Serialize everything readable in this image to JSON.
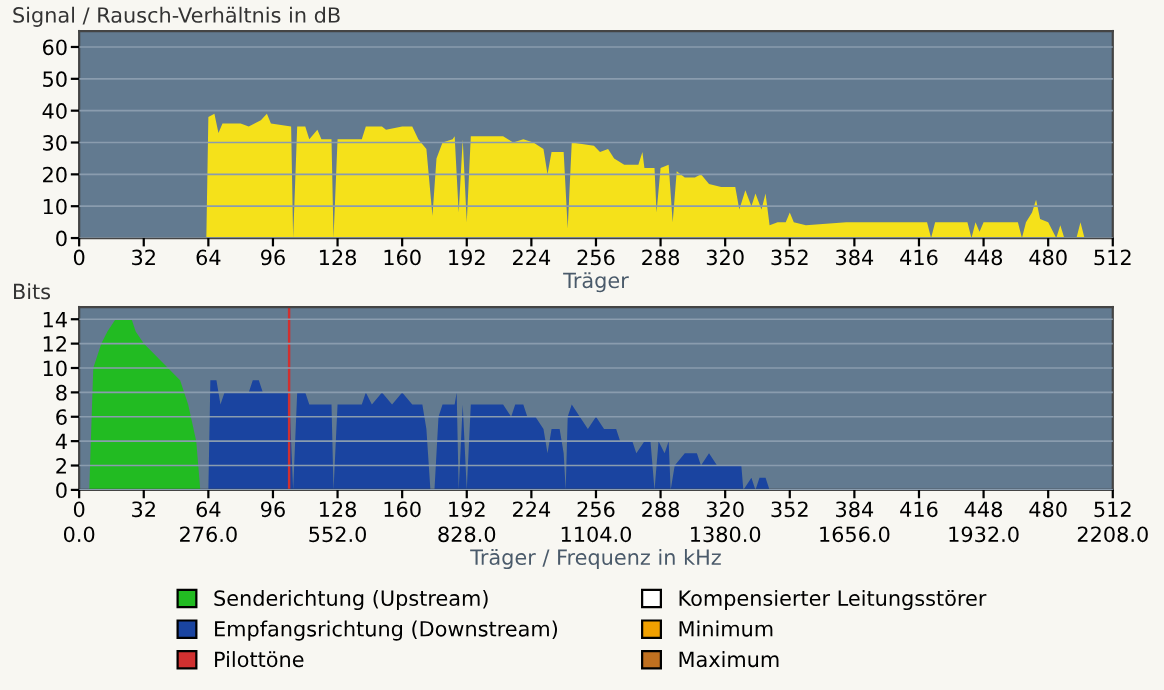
{
  "chart_data": [
    {
      "type": "area",
      "ylabel": "Signal / Rausch-Verhältnis in dB",
      "xlabel": "Träger",
      "xlim": [
        0,
        512
      ],
      "xticks": [
        0,
        32,
        64,
        96,
        128,
        160,
        192,
        224,
        256,
        288,
        320,
        352,
        384,
        416,
        448,
        480,
        512
      ],
      "ylim": [
        0,
        65
      ],
      "yticks": [
        0,
        10,
        20,
        30,
        40,
        50,
        60
      ],
      "grid": "y",
      "series": [
        {
          "color": "#f5e11a",
          "x": [
            0,
            63,
            64,
            67,
            69,
            71,
            80,
            84,
            90,
            93,
            95,
            105,
            106,
            108,
            112,
            114,
            118,
            120,
            125,
            126,
            128,
            140,
            142,
            150,
            152,
            160,
            165,
            168,
            172,
            175,
            177,
            180,
            185,
            186,
            188,
            190,
            192,
            194,
            210,
            215,
            220,
            225,
            230,
            232,
            234,
            240,
            242,
            244,
            255,
            258,
            262,
            265,
            270,
            277,
            279,
            280,
            285,
            286,
            288,
            292,
            294,
            296,
            300,
            305,
            308,
            312,
            318,
            325,
            327,
            330,
            333,
            335,
            338,
            340,
            342,
            346,
            350,
            352,
            354,
            360,
            380,
            400,
            420,
            422,
            424,
            440,
            442,
            444,
            446,
            448,
            465,
            467,
            469,
            472,
            474,
            476,
            480,
            484,
            486,
            488,
            494,
            496,
            498,
            512
          ],
          "values": [
            0,
            0,
            38,
            39,
            33,
            36,
            36,
            35,
            37,
            39,
            36,
            35,
            0,
            35,
            35,
            31,
            34,
            31,
            31,
            0,
            31,
            31,
            35,
            35,
            34,
            35,
            35,
            31,
            28,
            7,
            25,
            30,
            31,
            32,
            8,
            31,
            5,
            32,
            32,
            30,
            31,
            30,
            28,
            20,
            27,
            27,
            3,
            30,
            29,
            27,
            28,
            25,
            23,
            23,
            27,
            22,
            22,
            8,
            22,
            23,
            5,
            21,
            19,
            19,
            20,
            17,
            16,
            16,
            9,
            15,
            10,
            14,
            9,
            14,
            4,
            5,
            5,
            8,
            5,
            4,
            5,
            5,
            5,
            0,
            5,
            5,
            0,
            5,
            2,
            5,
            5,
            0,
            5,
            8,
            12,
            6,
            5,
            0,
            4,
            0,
            0,
            5,
            0,
            0
          ]
        }
      ]
    },
    {
      "type": "area",
      "ylabel": "Bits",
      "xlabel": "Träger / Frequenz in kHz",
      "xlim": [
        0,
        512
      ],
      "xticks": [
        0,
        32,
        64,
        96,
        128,
        160,
        192,
        224,
        256,
        288,
        320,
        352,
        384,
        416,
        448,
        480,
        512
      ],
      "x2lim": [
        0,
        2208
      ],
      "x2ticks": [
        {
          "value": 0,
          "label": "0.0"
        },
        {
          "value": 276,
          "label": "276.0"
        },
        {
          "value": 552,
          "label": "552.0"
        },
        {
          "value": 828,
          "label": "828.0"
        },
        {
          "value": 1104,
          "label": "1104.0"
        },
        {
          "value": 1380,
          "label": "1380.0"
        },
        {
          "value": 1656,
          "label": "1656.0"
        },
        {
          "value": 1932,
          "label": "1932.0"
        },
        {
          "value": 2208,
          "label": "2208.0"
        }
      ],
      "ylim": [
        0,
        15
      ],
      "yticks": [
        0,
        2,
        4,
        6,
        8,
        10,
        12,
        14
      ],
      "grid": "y",
      "legend": "bottom",
      "series": [
        {
          "name": "Senderichtung (Upstream)",
          "color": "#22bb22",
          "x": [
            0,
            5,
            6,
            7,
            9,
            11,
            14,
            18,
            26,
            28,
            32,
            38,
            44,
            50,
            54,
            58,
            60,
            63
          ],
          "values": [
            0,
            0,
            5,
            10,
            11,
            12,
            13,
            14,
            14,
            13,
            12,
            11,
            10,
            9,
            7,
            4,
            0,
            0
          ]
        },
        {
          "name": "Empfangsrichtung (Downstream)",
          "color": "#1a44a0",
          "x": [
            64,
            65,
            68,
            70,
            72,
            80,
            84,
            86,
            89,
            91,
            100,
            104,
            106,
            108,
            112,
            114,
            125,
            126,
            128,
            140,
            142,
            145,
            150,
            155,
            160,
            165,
            170,
            172,
            174,
            176,
            178,
            180,
            186,
            187,
            188,
            190,
            192,
            194,
            210,
            214,
            216,
            220,
            222,
            226,
            230,
            232,
            234,
            238,
            240,
            241,
            242,
            244,
            248,
            252,
            256,
            260,
            266,
            268,
            274,
            276,
            280,
            283,
            285,
            287,
            290,
            292,
            293,
            295,
            300,
            306,
            308,
            312,
            316,
            320,
            328,
            329,
            333,
            335,
            337,
            340,
            342,
            512
          ],
          "values": [
            0,
            9,
            9,
            7,
            8,
            8,
            8,
            9,
            9,
            8,
            8,
            8,
            0,
            8,
            8,
            7,
            7,
            0,
            7,
            7,
            8,
            7,
            8,
            7,
            8,
            7,
            7,
            5,
            0,
            0,
            6,
            7,
            7,
            8,
            0,
            7,
            0,
            7,
            7,
            6,
            7,
            7,
            6,
            6,
            5,
            3,
            5,
            5,
            3,
            0,
            6,
            7,
            6,
            5,
            6,
            5,
            5,
            4,
            4,
            3,
            4,
            4,
            0,
            4,
            3,
            4,
            0,
            2,
            3,
            3,
            2,
            3,
            2,
            2,
            2,
            0,
            1,
            0,
            1,
            1,
            0,
            0
          ]
        },
        {
          "name": "Pilottöne",
          "type": "bar",
          "color": "#d03030",
          "x": [
            104
          ],
          "values": [
            15
          ]
        },
        {
          "name": "Kompensierter Leitungsstörer",
          "type": "line",
          "color": "#ffffff"
        },
        {
          "name": "Minimum",
          "type": "line",
          "color": "#f0a000"
        },
        {
          "name": "Maximum",
          "type": "line",
          "color": "#c07020"
        }
      ]
    }
  ]
}
